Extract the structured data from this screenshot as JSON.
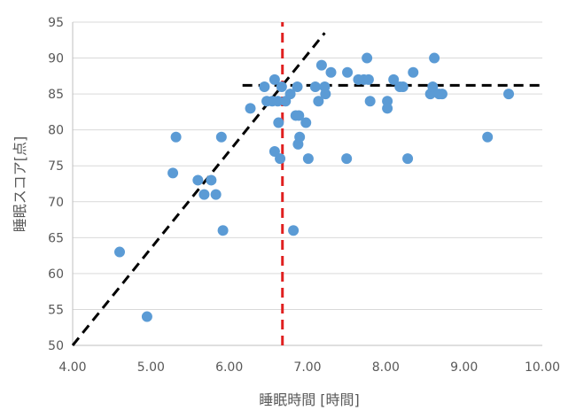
{
  "chart_data": {
    "type": "scatter",
    "xlabel": "睡眠時間 [時間]",
    "ylabel": "睡眠スコア[点]",
    "xlim": [
      4.0,
      10.0
    ],
    "ylim": [
      50,
      95
    ],
    "x_ticks": [
      "4.00",
      "5.00",
      "6.00",
      "7.00",
      "8.00",
      "9.00",
      "10.00"
    ],
    "y_ticks": [
      "50",
      "55",
      "60",
      "65",
      "70",
      "75",
      "80",
      "85",
      "90",
      "95"
    ],
    "grid": "horizontal",
    "marker_color": "#5b9bd5",
    "points": [
      {
        "x": 4.6,
        "y": 63
      },
      {
        "x": 4.95,
        "y": 54
      },
      {
        "x": 5.28,
        "y": 74
      },
      {
        "x": 5.32,
        "y": 79
      },
      {
        "x": 5.6,
        "y": 73
      },
      {
        "x": 5.68,
        "y": 71
      },
      {
        "x": 5.77,
        "y": 73
      },
      {
        "x": 5.83,
        "y": 71
      },
      {
        "x": 5.9,
        "y": 79
      },
      {
        "x": 5.92,
        "y": 66
      },
      {
        "x": 6.27,
        "y": 83
      },
      {
        "x": 6.45,
        "y": 86
      },
      {
        "x": 6.48,
        "y": 84
      },
      {
        "x": 6.55,
        "y": 84
      },
      {
        "x": 6.58,
        "y": 87
      },
      {
        "x": 6.58,
        "y": 77
      },
      {
        "x": 6.62,
        "y": 84
      },
      {
        "x": 6.63,
        "y": 81
      },
      {
        "x": 6.65,
        "y": 76
      },
      {
        "x": 6.67,
        "y": 86
      },
      {
        "x": 6.72,
        "y": 84
      },
      {
        "x": 6.78,
        "y": 85
      },
      {
        "x": 6.82,
        "y": 66
      },
      {
        "x": 6.85,
        "y": 82
      },
      {
        "x": 6.87,
        "y": 86
      },
      {
        "x": 6.88,
        "y": 78
      },
      {
        "x": 6.89,
        "y": 82
      },
      {
        "x": 6.9,
        "y": 79
      },
      {
        "x": 6.98,
        "y": 81
      },
      {
        "x": 7.01,
        "y": 76
      },
      {
        "x": 7.1,
        "y": 86
      },
      {
        "x": 7.14,
        "y": 84
      },
      {
        "x": 7.18,
        "y": 89
      },
      {
        "x": 7.22,
        "y": 86
      },
      {
        "x": 7.23,
        "y": 85
      },
      {
        "x": 7.3,
        "y": 88
      },
      {
        "x": 7.5,
        "y": 76
      },
      {
        "x": 7.51,
        "y": 88
      },
      {
        "x": 7.65,
        "y": 87
      },
      {
        "x": 7.72,
        "y": 87
      },
      {
        "x": 7.76,
        "y": 90
      },
      {
        "x": 7.78,
        "y": 87
      },
      {
        "x": 7.8,
        "y": 84
      },
      {
        "x": 8.02,
        "y": 84
      },
      {
        "x": 8.02,
        "y": 83
      },
      {
        "x": 8.1,
        "y": 87
      },
      {
        "x": 8.18,
        "y": 86
      },
      {
        "x": 8.22,
        "y": 86
      },
      {
        "x": 8.28,
        "y": 76
      },
      {
        "x": 8.35,
        "y": 88
      },
      {
        "x": 8.57,
        "y": 85
      },
      {
        "x": 8.6,
        "y": 86
      },
      {
        "x": 8.62,
        "y": 90
      },
      {
        "x": 8.68,
        "y": 85
      },
      {
        "x": 8.72,
        "y": 85
      },
      {
        "x": 9.3,
        "y": 79
      },
      {
        "x": 9.57,
        "y": 85
      }
    ],
    "reference_lines": [
      {
        "kind": "diagonal",
        "color": "#000000",
        "x1": 4.0,
        "y1": 50,
        "x2": 7.22,
        "y2": 93.5
      },
      {
        "kind": "horizontal",
        "color": "#000000",
        "y": 86.2,
        "x_from": 6.17,
        "x_to": 10.0
      },
      {
        "kind": "vertical",
        "color": "#e02020",
        "x": 6.68,
        "y_from": 50,
        "y_to": 95
      }
    ]
  }
}
